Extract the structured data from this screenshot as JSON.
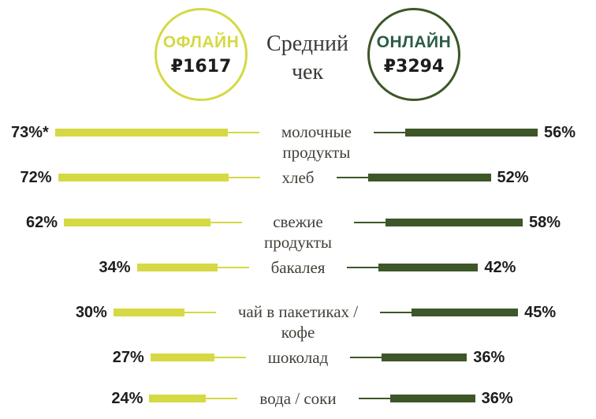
{
  "header": {
    "offline": {
      "label": "ОФЛАЙН",
      "amount": "₽1617"
    },
    "online": {
      "label": "ОНЛАЙН",
      "amount": "₽3294"
    },
    "title_line1": "Средний",
    "title_line2": "чек"
  },
  "chart_data": {
    "type": "bar",
    "orientation": "horizontal-diverging",
    "title": "Средний чек",
    "value_unit": "%",
    "xlim": [
      0,
      100
    ],
    "categories": [
      "молочные продукты",
      "хлеб",
      "свежие продукты",
      "бакалея",
      "чай в пакетиках / кофе",
      "шоколад",
      "вода / соки"
    ],
    "series": [
      {
        "name": "ОФЛАЙН",
        "average_check": "₽1617",
        "values": [
          73,
          72,
          62,
          34,
          30,
          27,
          24
        ]
      },
      {
        "name": "ОНЛАЙН",
        "average_check": "₽3294",
        "values": [
          56,
          52,
          58,
          42,
          45,
          36,
          36
        ]
      }
    ],
    "legend_position": "top-circles",
    "grid": false
  },
  "rows": [
    {
      "offline_label": "73%*",
      "cat_line1": "молочные",
      "cat_line2": "продукты",
      "online_label": "56%"
    },
    {
      "offline_label": "72%",
      "cat_line1": "хлеб",
      "cat_line2": "",
      "online_label": "52%"
    },
    {
      "offline_label": "62%",
      "cat_line1": "свежие",
      "cat_line2": "продукты",
      "online_label": "58%"
    },
    {
      "offline_label": "34%",
      "cat_line1": "бакалея",
      "cat_line2": "",
      "online_label": "42%"
    },
    {
      "offline_label": "30%",
      "cat_line1": "чай в пакетиках /",
      "cat_line2": "кофе",
      "online_label": "45%"
    },
    {
      "offline_label": "27%",
      "cat_line1": "шоколад",
      "cat_line2": "",
      "online_label": "36%"
    },
    {
      "offline_label": "24%",
      "cat_line1": "вода / соки",
      "cat_line2": "",
      "online_label": "36%"
    }
  ],
  "colors": {
    "offline_accent": "#d5d944",
    "online_accent": "#3d5728",
    "online_label_text": "#2b5d47",
    "percent_text": "#1d1d1b",
    "category_text": "#44403a",
    "title_text": "#3b3a36",
    "background": "#ffffff"
  }
}
